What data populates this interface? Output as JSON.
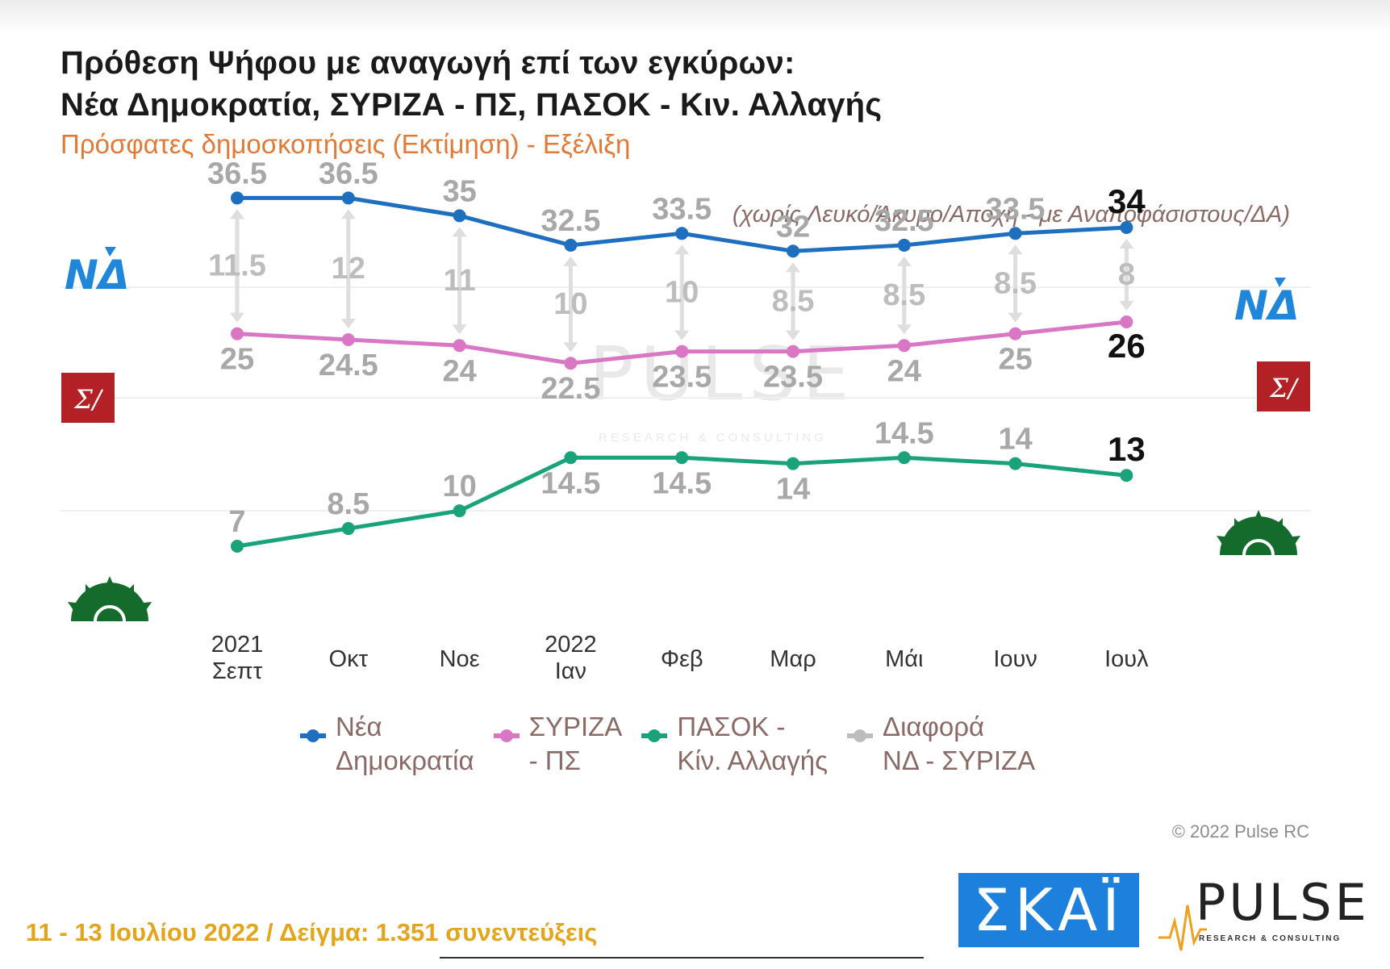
{
  "header": {
    "title_line1": "Πρόθεση Ψήφου με αναγωγή επί των εγκύρων:",
    "title_line2": "Νέα Δημοκρατία, ΣΥΡΙΖΑ - ΠΣ, ΠΑΣΟΚ - Κιν. Αλλαγής",
    "subtitle": "Πρόσφατες δημοσκοπήσεις (Εκτίμηση) - Εξέλιξη",
    "note": "(χωρίς Λευκό/Άκυρο/Αποχή - με Αναποφάσιστους/ΔΑ)"
  },
  "watermark": {
    "name": "PULSE",
    "sub": "RESEARCH & CONSULTING"
  },
  "chart_data": {
    "type": "line",
    "categories": [
      "2021\nΣεπτ",
      "Οκτ",
      "Νοε",
      "2022\nΙαν",
      "Φεβ",
      "Μαρ",
      "Μάι",
      "Ιουν",
      "Ιουλ"
    ],
    "series": [
      {
        "name": "Νέα Δημοκρατία",
        "color": "#1f6fc0",
        "values": [
          36.5,
          36.5,
          35,
          32.5,
          33.5,
          32,
          32.5,
          33.5,
          34
        ]
      },
      {
        "name": "ΣΥΡΙΖΑ - ΠΣ",
        "color": "#d977c4",
        "values": [
          25,
          24.5,
          24,
          22.5,
          23.5,
          23.5,
          24,
          25,
          26
        ]
      },
      {
        "name": "ΠΑΣΟΚ - Κίν. Αλλαγής",
        "color": "#1aa37a",
        "values": [
          7,
          8.5,
          10,
          14.5,
          14.5,
          14,
          14.5,
          14,
          13
        ]
      },
      {
        "name": "Διαφορά ΝΔ - ΣΥΡΙΖΑ",
        "color": "#bdbdbd",
        "values": [
          11.5,
          12,
          11,
          10,
          10,
          8.5,
          8.5,
          8.5,
          8
        ]
      }
    ],
    "legend": [
      "Νέα\nΔημοκρατία",
      "ΣΥΡΙΖΑ\n- ΠΣ",
      "ΠΑΣΟΚ -\nΚίν. Αλλαγής",
      "Διαφορά\nΝΔ - ΣΥΡΙΖΑ"
    ],
    "legend_position": "bottom",
    "grid": true,
    "label_color": "#a8a8a8",
    "latest_label_color": "#111111",
    "party_logos": [
      {
        "text": "ΝΔ",
        "icon": "nd-logo"
      },
      {
        "text": "Σ/",
        "icon": "syriza-logo"
      },
      {
        "icon": "pasok-sun-logo"
      }
    ]
  },
  "footer": {
    "copyright": "© 2022 Pulse RC",
    "date_sample": "11 - 13  Ιουλίου  2022  /  Δείγμα:  1.351 συνεντεύξεις",
    "skai_logo": "ΣΚΑΪ",
    "pulse_logo": "PULSE",
    "pulse_sub": "RESEARCH & CONSULTING"
  }
}
